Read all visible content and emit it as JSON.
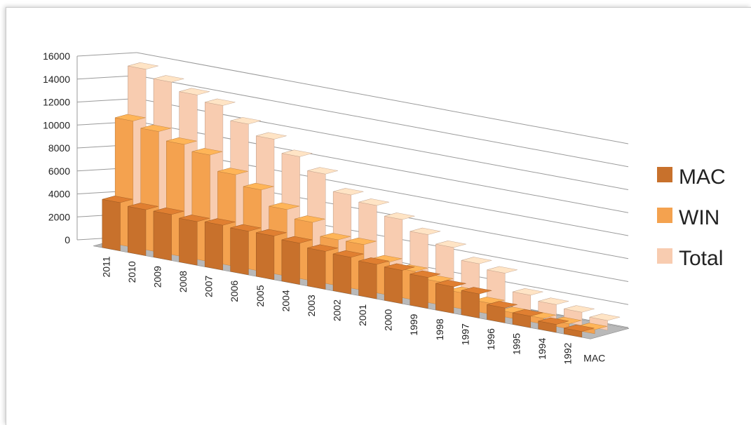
{
  "chart_data": {
    "type": "bar",
    "subtype": "3d-column",
    "categories": [
      "2011",
      "2010",
      "2009",
      "2008",
      "2007",
      "2006",
      "2005",
      "2004",
      "2003",
      "2002",
      "2001",
      "2000",
      "1999",
      "1998",
      "1997",
      "1996",
      "1995",
      "1994",
      "1992"
    ],
    "series": [
      {
        "name": "MAC",
        "color": "#c8712c",
        "values": [
          4200,
          4000,
          4000,
          3800,
          3900,
          3800,
          3800,
          3600,
          3300,
          3200,
          3000,
          2900,
          2700,
          2300,
          2100,
          1300,
          1000,
          700,
          500
        ]
      },
      {
        "name": "WIN",
        "color": "#f4a24f",
        "values": [
          11000,
          10500,
          9800,
          9300,
          8000,
          7100,
          5800,
          5100,
          4000,
          4000,
          2900,
          2500,
          2000,
          1400,
          950,
          500,
          500,
          450,
          350
        ]
      },
      {
        "name": "Total",
        "color": "#f8ccb0",
        "values": [
          15200,
          14500,
          13800,
          13300,
          12100,
          11200,
          10100,
          9000,
          7600,
          7100,
          6300,
          5400,
          4700,
          3700,
          3300,
          1800,
          1400,
          1150,
          850
        ]
      }
    ],
    "depth_axis_labels": [
      "MAC"
    ],
    "y_ticks": [
      0,
      2000,
      4000,
      6000,
      8000,
      10000,
      12000,
      14000,
      16000
    ],
    "ylim": [
      0,
      16000
    ],
    "legend_position": "right",
    "grid": true
  }
}
